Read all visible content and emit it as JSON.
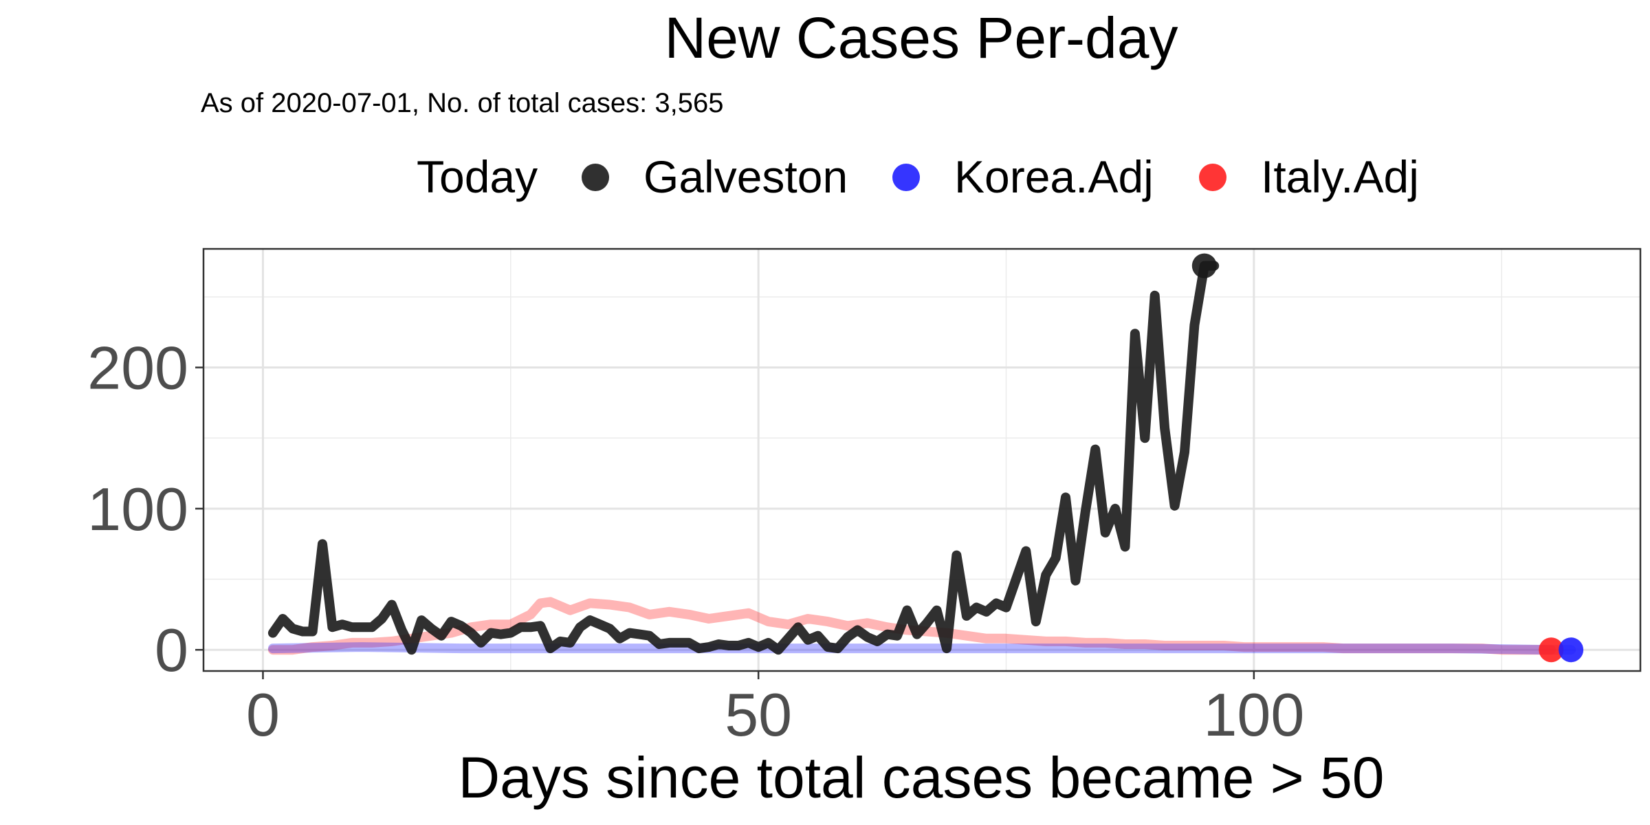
{
  "chart_data": {
    "type": "line",
    "title": "New Cases Per-day",
    "subtitle": "As of 2020-07-01, No. of total cases: 3,565",
    "xlabel": "Days since total cases became > 50",
    "ylabel": "",
    "xlim": [
      -6,
      139
    ],
    "ylim": [
      -15,
      284
    ],
    "x_ticks": [
      0,
      50,
      100
    ],
    "y_ticks": [
      0,
      100,
      200
    ],
    "grid": true,
    "legend": {
      "title": "Today",
      "placement": "top",
      "entries": [
        {
          "label": "Galveston",
          "color": "#1a1a1a"
        },
        {
          "label": "Korea.Adj",
          "color": "#1f1fff"
        },
        {
          "label": "Italy.Adj",
          "color": "#ff1f1f"
        }
      ]
    },
    "series": [
      {
        "name": "Italy.Adj",
        "color": "#ff1f1f",
        "opacity": 0.33,
        "x": [
          1,
          3,
          5,
          7,
          9,
          11,
          13,
          15,
          17,
          19,
          21,
          23,
          25,
          27,
          28,
          29,
          31,
          33,
          35,
          37,
          39,
          41,
          43,
          45,
          47,
          49,
          51,
          53,
          55,
          57,
          59,
          61,
          63,
          65,
          67,
          69,
          71,
          73,
          75,
          77,
          79,
          81,
          83,
          85,
          87,
          89,
          91,
          93,
          95,
          97,
          99,
          101,
          103,
          105,
          107,
          109,
          111,
          113,
          115,
          117,
          119,
          121,
          123,
          125,
          127,
          129,
          130
        ],
        "values": [
          0,
          0,
          2,
          3,
          5,
          5,
          6,
          8,
          10,
          12,
          16,
          18,
          18,
          25,
          33,
          34,
          28,
          33,
          32,
          30,
          25,
          27,
          25,
          22,
          24,
          26,
          20,
          18,
          22,
          20,
          17,
          19,
          16,
          14,
          13,
          12,
          10,
          8,
          8,
          7,
          6,
          6,
          5,
          5,
          4,
          4,
          3,
          3,
          3,
          3,
          2,
          2,
          2,
          2,
          2,
          1,
          1,
          1,
          1,
          1,
          1,
          1,
          1,
          0,
          0,
          0,
          0
        ]
      },
      {
        "name": "Korea.Adj",
        "color": "#1f1fff",
        "opacity": 0.33,
        "x": [
          1,
          10,
          20,
          30,
          40,
          50,
          60,
          70,
          80,
          90,
          100,
          110,
          120,
          130,
          132
        ],
        "values": [
          1,
          2,
          1,
          1,
          1,
          1,
          1,
          1,
          1,
          1,
          1,
          1,
          1,
          0,
          0
        ]
      },
      {
        "name": "Galveston",
        "color": "#1a1a1a",
        "opacity": 0.9,
        "x": [
          1,
          2,
          3,
          4,
          5,
          6,
          7,
          8,
          9,
          10,
          11,
          12,
          13,
          14,
          15,
          16,
          17,
          18,
          19,
          20,
          21,
          22,
          23,
          24,
          25,
          26,
          27,
          28,
          29,
          30,
          31,
          32,
          33,
          34,
          35,
          36,
          37,
          38,
          39,
          40,
          41,
          42,
          43,
          44,
          45,
          46,
          47,
          48,
          49,
          50,
          51,
          52,
          53,
          54,
          55,
          56,
          57,
          58,
          59,
          60,
          61,
          62,
          63,
          64,
          65,
          66,
          67,
          68,
          69,
          70,
          71,
          72,
          73,
          74,
          75,
          76,
          77,
          78,
          79,
          80,
          81,
          82,
          83,
          84,
          85,
          86,
          87,
          88,
          89,
          90,
          91,
          92,
          93,
          94,
          95,
          96
        ],
        "values": [
          12,
          22,
          15,
          13,
          13,
          75,
          16,
          18,
          16,
          16,
          16,
          22,
          32,
          14,
          0,
          21,
          15,
          10,
          20,
          17,
          12,
          5,
          12,
          11,
          12,
          16,
          16,
          17,
          1,
          6,
          5,
          16,
          21,
          18,
          15,
          8,
          12,
          11,
          10,
          4,
          5,
          5,
          5,
          1,
          2,
          4,
          3,
          3,
          5,
          2,
          5,
          0,
          8,
          16,
          7,
          10,
          2,
          1,
          9,
          14,
          9,
          6,
          11,
          10,
          28,
          11,
          19,
          28,
          1,
          67,
          24,
          30,
          27,
          33,
          30,
          50,
          70,
          20,
          53,
          65,
          108,
          49,
          98,
          142,
          83,
          100,
          73,
          224,
          150,
          251,
          157,
          102,
          140,
          230,
          272,
          272
        ]
      }
    ],
    "today_points": [
      {
        "series": "Galveston",
        "x": 95,
        "y": 272,
        "color": "#1a1a1a"
      },
      {
        "series": "Italy.Adj",
        "x": 130,
        "y": 0,
        "color": "#ff1f1f"
      },
      {
        "series": "Korea.Adj",
        "x": 132,
        "y": 0,
        "color": "#1f1fff"
      }
    ]
  }
}
